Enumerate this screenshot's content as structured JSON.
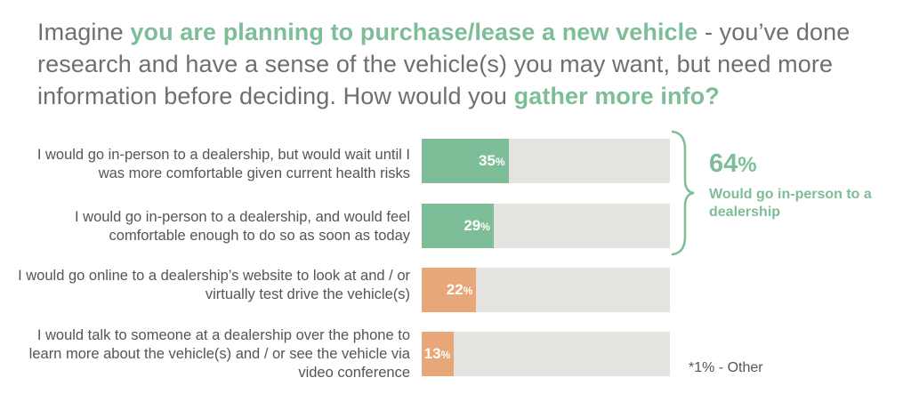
{
  "title": {
    "p1": "Imagine ",
    "h1": "you are planning to purchase/lease a new vehicle",
    "p2": " - you’ve done research and have a sense of the vehicle(s) you may want, but need more information before deciding. How would you ",
    "h2": "gather more info?"
  },
  "chart_data": {
    "type": "bar",
    "orientation": "horizontal",
    "categories": [
      "I would go in-person to a dealership, but would wait until I was more comfortable given current health risks",
      "I would go in-person to a dealership, and would feel comfortable enough to do so as soon as today",
      "I would go online to a dealership’s website to look at and / or virtually test drive the vehicle(s)",
      "I would talk to someone at a dealership over the phone to learn more about the vehicle(s) and / or see the vehicle via video conference"
    ],
    "values": [
      35,
      29,
      22,
      13
    ],
    "data_labels": [
      {
        "num": "35",
        "pct": "%"
      },
      {
        "num": "29",
        "pct": "%"
      },
      {
        "num": "22",
        "pct": "%"
      },
      {
        "num": "13",
        "pct": "%"
      }
    ],
    "bar_colors": [
      "#7dbd97",
      "#7dbd97",
      "#e8a778",
      "#e8a778"
    ],
    "track_color": "#e4e3df",
    "xlim": [
      0,
      100
    ],
    "annotation": {
      "value": "64",
      "pct": "%",
      "text": "Would go in-person to a dealership",
      "color": "#7dbd97"
    },
    "footnote": "*1% - Other"
  }
}
